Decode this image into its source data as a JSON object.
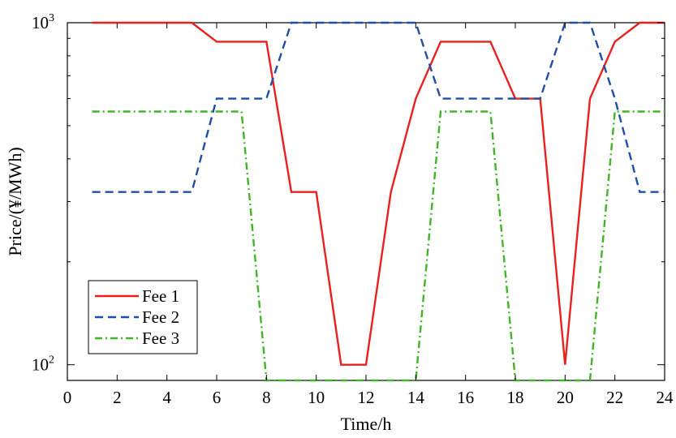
{
  "chart_data": {
    "type": "line",
    "xlabel": "Time/h",
    "ylabel": "Price/(¥/MWh)",
    "xlim": [
      0,
      24
    ],
    "ylim": [
      90,
      1000
    ],
    "yscale": "log",
    "grid": false,
    "legend_position": "bottom-left",
    "x_ticks": [
      "0",
      "2",
      "4",
      "6",
      "8",
      "10",
      "12",
      "14",
      "16",
      "18",
      "20",
      "22",
      "24"
    ],
    "y_ticks": [
      {
        "value": 100,
        "base": "10",
        "exp": "2"
      },
      {
        "value": 1000,
        "base": "10",
        "exp": "3"
      }
    ],
    "x": [
      1,
      2,
      3,
      4,
      5,
      6,
      7,
      8,
      9,
      10,
      11,
      12,
      13,
      14,
      15,
      16,
      17,
      18,
      19,
      20,
      21,
      22,
      23,
      24
    ],
    "series": [
      {
        "name": "Fee 1",
        "color": "#e8211f",
        "dash": "solid",
        "values": [
          1000,
          1000,
          1000,
          1000,
          1000,
          880,
          880,
          880,
          320,
          320,
          100,
          100,
          320,
          600,
          880,
          880,
          880,
          600,
          600,
          100,
          600,
          880,
          1000,
          1000
        ]
      },
      {
        "name": "Fee 2",
        "color": "#1f4ea8",
        "dash": "dash",
        "values": [
          320,
          320,
          320,
          320,
          320,
          600,
          600,
          600,
          1000,
          1000,
          1000,
          1000,
          1000,
          1000,
          600,
          600,
          600,
          600,
          600,
          1000,
          1000,
          600,
          320,
          320
        ]
      },
      {
        "name": "Fee 3",
        "color": "#3fb527",
        "dash": "dashdot",
        "values": [
          550,
          550,
          550,
          550,
          550,
          550,
          550,
          90,
          90,
          90,
          90,
          90,
          90,
          90,
          550,
          550,
          550,
          90,
          90,
          90,
          90,
          550,
          550,
          550
        ]
      }
    ]
  }
}
